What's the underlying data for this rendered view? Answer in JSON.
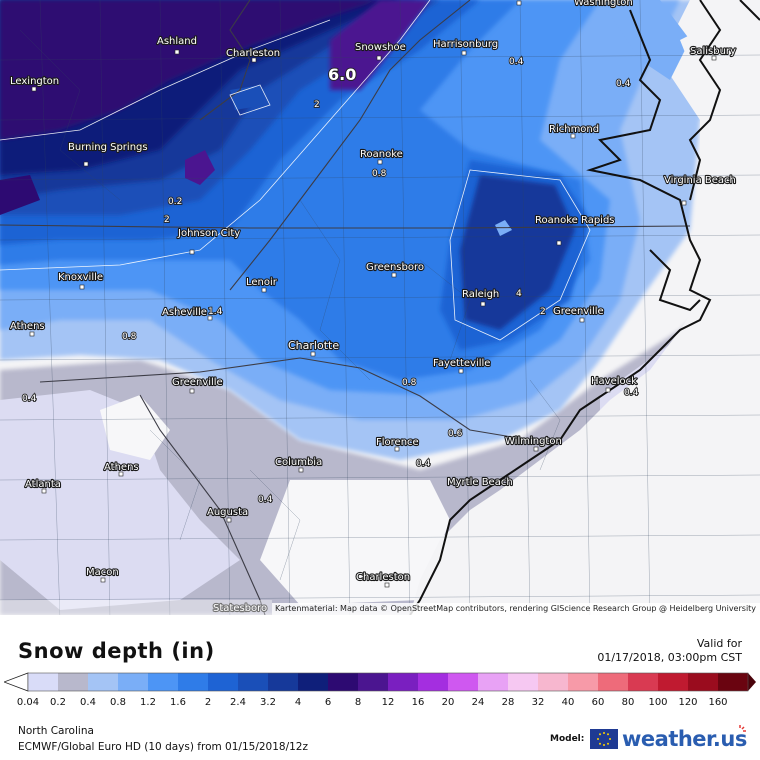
{
  "title": "Snow depth (in)",
  "valid": {
    "label": "Valid for",
    "datetime": "01/17/2018, 03:00pm CST"
  },
  "region": "North Carolina",
  "model_run": "ECMWF/Global Euro HD (10 days) from 01/15/2018/12z",
  "model_label": "Model:",
  "brand": "weather.us",
  "map_credit": "Kartenmaterial: Map data © OpenStreetMap contributors, rendering GIScience Research Group @ Heidelberg University",
  "legend": {
    "ticks": [
      "0.04",
      "0.2",
      "0.4",
      "0.8",
      "1.2",
      "1.6",
      "2",
      "2.4",
      "3.2",
      "4",
      "6",
      "8",
      "12",
      "16",
      "20",
      "24",
      "28",
      "32",
      "40",
      "60",
      "80",
      "100",
      "120",
      "160"
    ],
    "colors": [
      "#d9dcf8",
      "#b8b8cc",
      "#a4c4f5",
      "#7aaef7",
      "#4d95f5",
      "#2f7ce8",
      "#1e63d4",
      "#1a4fb8",
      "#16399a",
      "#0f1f7a",
      "#2d0a72",
      "#4b1590",
      "#7a1fc0",
      "#a42ee0",
      "#cf58f0",
      "#e8a2f5",
      "#f6c8f2",
      "#f7b7cf",
      "#f79aa8",
      "#ee6b7a",
      "#d93a52",
      "#c01a30",
      "#9a0c1e",
      "#6a0410"
    ]
  },
  "cities": [
    {
      "name": "Washington"
    },
    {
      "name": "Ashland"
    },
    {
      "name": "Charleston"
    },
    {
      "name": "Snowshoe"
    },
    {
      "name": "Harrisonburg"
    },
    {
      "name": "Salisbury"
    },
    {
      "name": "Lexington"
    },
    {
      "name": "Richmond"
    },
    {
      "name": "Burning Springs"
    },
    {
      "name": "Roanoke"
    },
    {
      "name": "Virginia Beach"
    },
    {
      "name": "Roanoke Rapids"
    },
    {
      "name": "Johnson City"
    },
    {
      "name": "Greensboro"
    },
    {
      "name": "Knoxville"
    },
    {
      "name": "Lenoir"
    },
    {
      "name": "Raleigh"
    },
    {
      "name": "Asheville"
    },
    {
      "name": "Greenville"
    },
    {
      "name": "Athens"
    },
    {
      "name": "Charlotte"
    },
    {
      "name": "Fayetteville"
    },
    {
      "name": "Havelock"
    },
    {
      "name": "Greenville"
    },
    {
      "name": "Wilmington"
    },
    {
      "name": "Florence"
    },
    {
      "name": "Athens"
    },
    {
      "name": "Atlanta"
    },
    {
      "name": "Columbia"
    },
    {
      "name": "Myrtle Beach"
    },
    {
      "name": "Augusta"
    },
    {
      "name": "Macon"
    },
    {
      "name": "Charleston"
    },
    {
      "name": "Statesboro"
    }
  ],
  "isolines": [
    "6.0",
    "0.4",
    "0.4",
    "2",
    "0.8",
    "0.2",
    "2",
    "4",
    "2",
    "1.4",
    "0.8",
    "0.4",
    "0.8",
    "0.4",
    "0.6",
    "0.4",
    "0.4"
  ]
}
